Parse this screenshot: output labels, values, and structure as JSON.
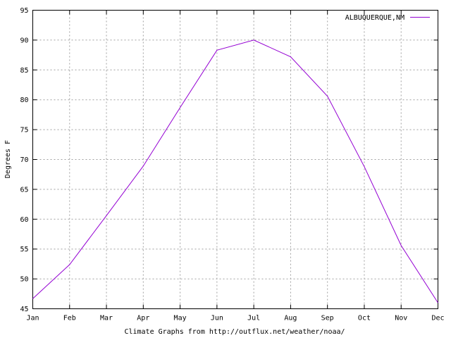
{
  "chart_data": {
    "type": "line",
    "categories": [
      "Jan",
      "Feb",
      "Mar",
      "Apr",
      "May",
      "Jun",
      "Jul",
      "Aug",
      "Sep",
      "Oct",
      "Nov",
      "Dec"
    ],
    "series": [
      {
        "name": "ALBUQUERQUE,NM",
        "color": "#9400d3",
        "values": [
          46.7,
          52.4,
          60.6,
          68.9,
          78.7,
          88.3,
          90.0,
          87.2,
          80.6,
          68.8,
          55.6,
          46.0
        ]
      }
    ],
    "title": "",
    "xlabel": "Climate Graphs from http://outflux.net/weather/noaa/",
    "ylabel": "Degrees F",
    "ylim": [
      45,
      95
    ],
    "yticks": [
      45,
      50,
      55,
      60,
      65,
      70,
      75,
      80,
      85,
      90,
      95
    ],
    "grid": true,
    "legend_position": "top-right"
  }
}
